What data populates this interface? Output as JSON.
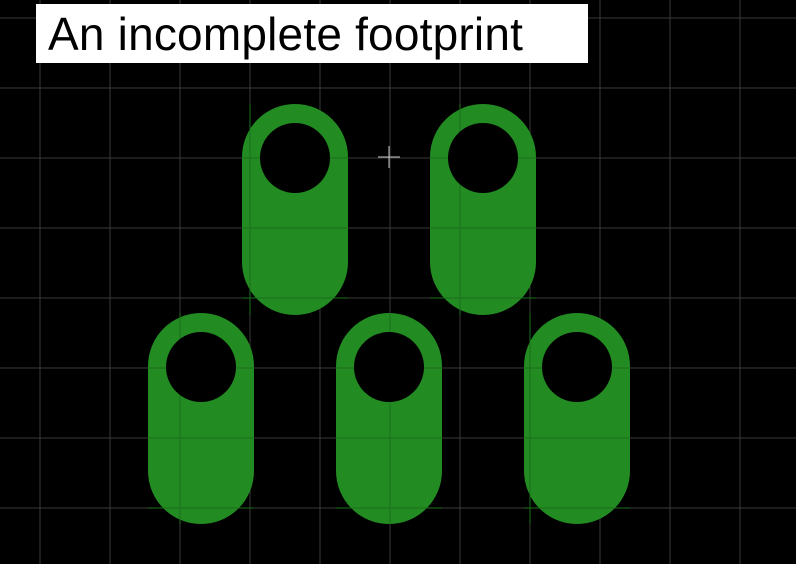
{
  "title": "An incomplete footprint",
  "colors": {
    "background": "#000000",
    "grid": "#3a3a3a",
    "pad": "#228b22",
    "hole": "#000000",
    "cursor": "#c8c8c8",
    "title_bg": "#ffffff",
    "title_text": "#000000"
  },
  "icons": {
    "cursor": "crosshair-cursor-icon"
  },
  "pads": [
    {
      "id": "pad-1"
    },
    {
      "id": "pad-2"
    },
    {
      "id": "pad-3"
    },
    {
      "id": "pad-4"
    },
    {
      "id": "pad-5"
    }
  ]
}
